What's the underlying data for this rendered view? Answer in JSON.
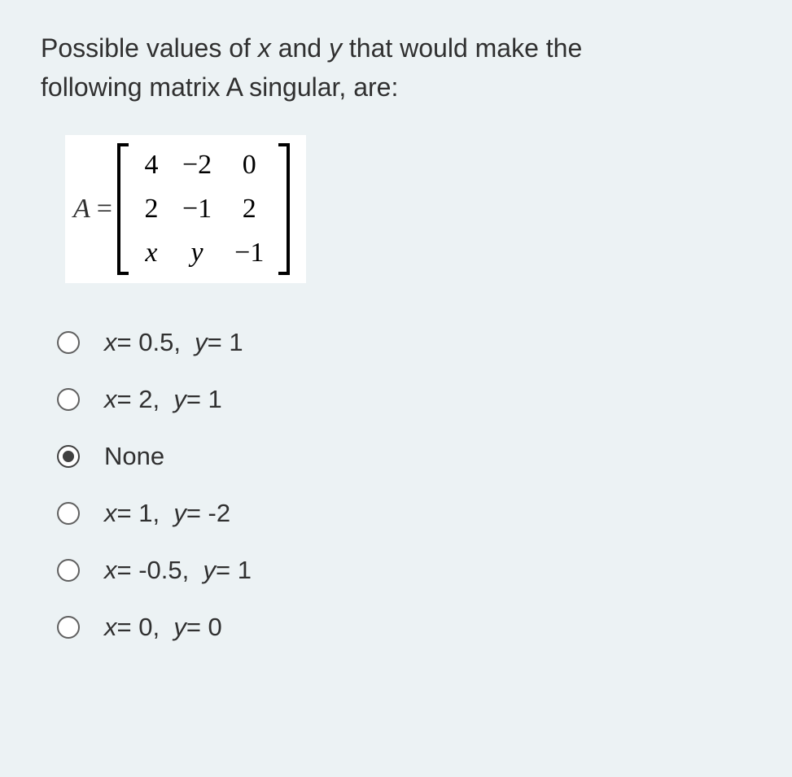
{
  "background_color": "#ecf2f4",
  "text_color": "#303030",
  "question": {
    "line1_pre": "Possible values of ",
    "var_x": "x",
    "mid1": " and ",
    "var_y": "y",
    "line1_post": " that would make the",
    "line2": "following matrix A singular, are:"
  },
  "matrix": {
    "label": "A",
    "equals": "=",
    "rows": [
      [
        "4",
        "−2",
        "0"
      ],
      [
        "2",
        "−1",
        "2"
      ],
      [
        "x",
        "y",
        "−1"
      ]
    ],
    "italic_cells": [
      [
        2,
        0
      ],
      [
        2,
        1
      ]
    ],
    "bracket_color": "#000000",
    "cell_fontsize": 34,
    "background": "#ffffff"
  },
  "options": [
    {
      "label": "x= 0.5,  y= 1",
      "selected": false
    },
    {
      "label": "x= 2,  y= 1",
      "selected": false
    },
    {
      "label": "None",
      "selected": true
    },
    {
      "label": "x= 1,  y= -2",
      "selected": false
    },
    {
      "label": "x= -0.5,  y= 1",
      "selected": false
    },
    {
      "label": "x= 0,  y= 0",
      "selected": false
    }
  ],
  "radio": {
    "border_color": "#606060",
    "fill_color": "#404040",
    "size": 28
  },
  "fontsize": {
    "question": 32,
    "option": 31
  }
}
